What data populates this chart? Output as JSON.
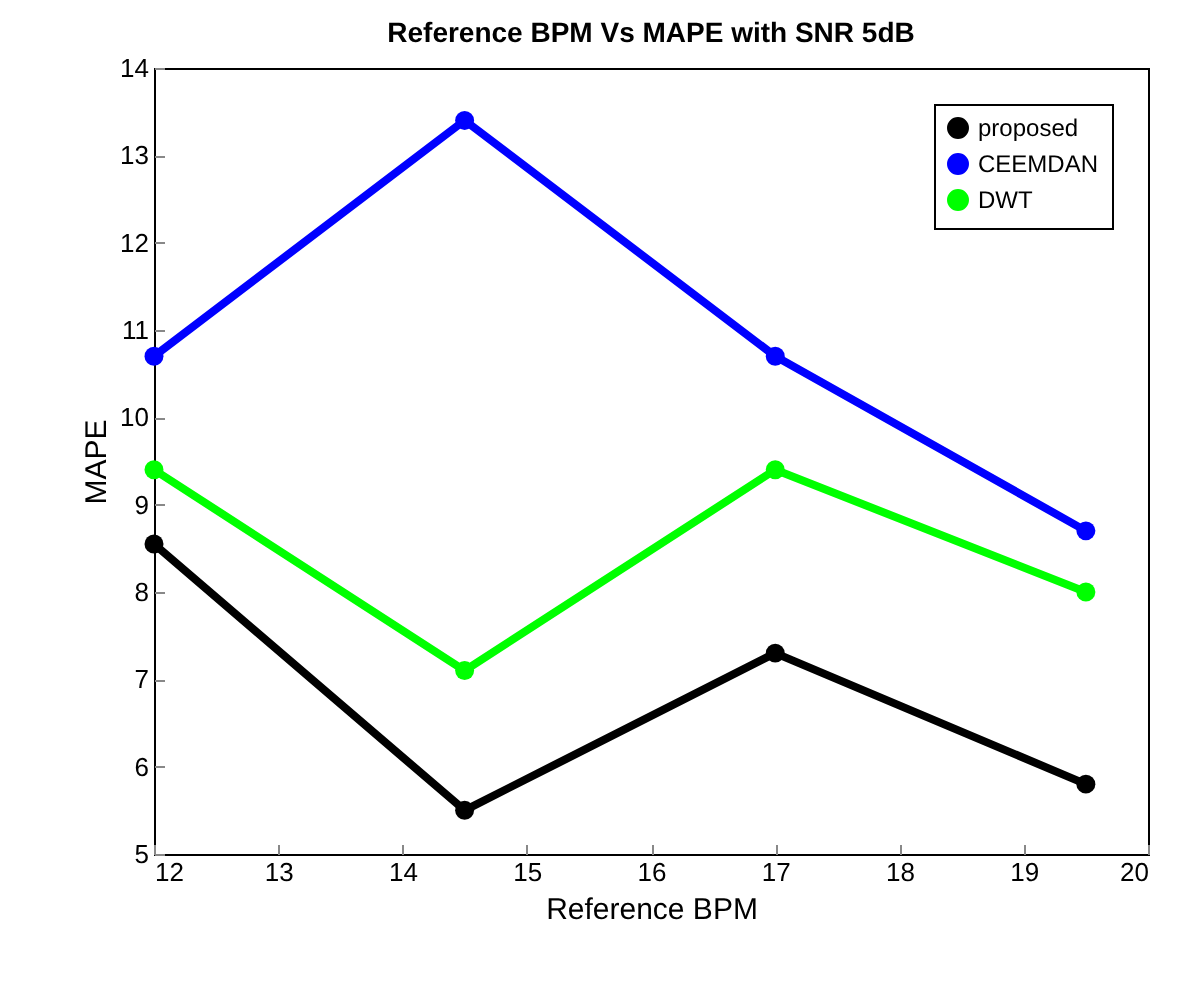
{
  "chart_data": {
    "type": "line",
    "title": "Reference BPM Vs MAPE with SNR 5dB",
    "xlabel": "Reference BPM",
    "ylabel": "MAPE",
    "x": [
      12,
      14.5,
      17,
      19.5
    ],
    "series": [
      {
        "name": "proposed",
        "color": "#000000",
        "values": [
          8.55,
          5.5,
          7.3,
          5.8
        ]
      },
      {
        "name": "CEEMDAN",
        "color": "#0000ff",
        "values": [
          10.7,
          13.4,
          10.7,
          8.7
        ]
      },
      {
        "name": "DWT",
        "color": "#00ff00",
        "values": [
          9.4,
          7.1,
          9.4,
          8.0
        ]
      }
    ],
    "xlim": [
      12,
      20
    ],
    "xticks": [
      12,
      13,
      14,
      15,
      16,
      17,
      18,
      19,
      20
    ],
    "ylim": [
      5,
      14
    ],
    "yticks": [
      5,
      6,
      7,
      8,
      9,
      10,
      11,
      12,
      13,
      14
    ],
    "grid": false,
    "legend": "top right",
    "marker": "circle",
    "line_style": "solid"
  }
}
